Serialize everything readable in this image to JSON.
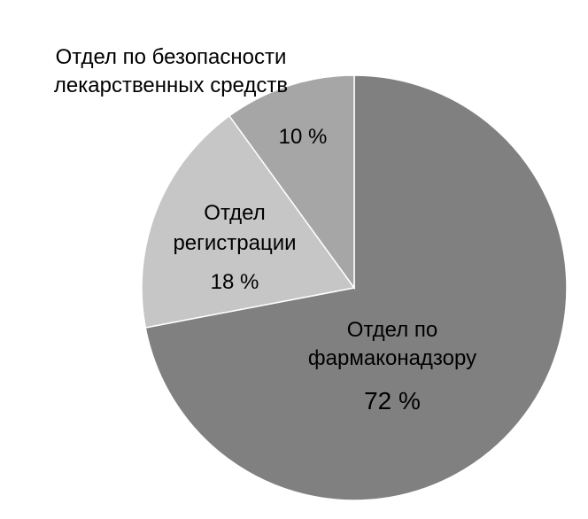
{
  "chart_data": {
    "type": "pie",
    "start_angle_deg": 0,
    "direction": "clockwise",
    "slices": [
      {
        "label_lines": [
          "Отдел по",
          "фармаконадзору"
        ],
        "value": 72,
        "value_label": "72 %",
        "color": "#808080"
      },
      {
        "label_lines": [
          "Отдел",
          "регистрации"
        ],
        "value": 18,
        "value_label": "18 %",
        "color": "#c6c6c6"
      },
      {
        "label_lines": [
          "Отдел по безопасности",
          "лекарственных средств"
        ],
        "value": 10,
        "value_label": "10 %",
        "color": "#a6a6a6"
      }
    ],
    "stroke_color": "#ffffff",
    "text_color": "#000000"
  }
}
